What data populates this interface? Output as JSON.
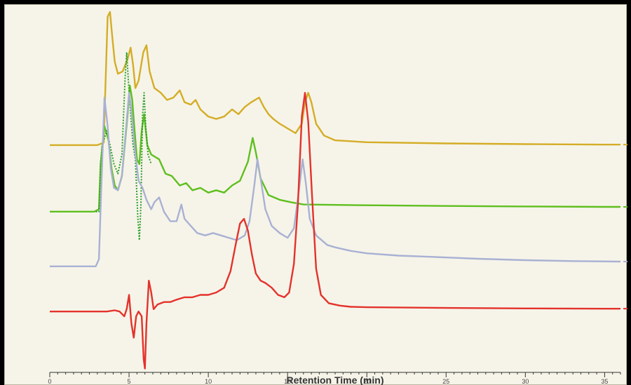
{
  "chart_data": {
    "type": "line",
    "title": "",
    "xlabel": "Retention Time (min)",
    "ylabel": "",
    "xlim": [
      0,
      36
    ],
    "ylim": [
      -0.5,
      14.6
    ],
    "grid": false,
    "legend": "none",
    "x_ticks": [
      0,
      5,
      10,
      15,
      20,
      25,
      30,
      35
    ],
    "x_tick_labels": [
      "0",
      "5",
      "10",
      "15",
      "20",
      "25",
      "30",
      "35"
    ],
    "colors": {
      "background": "#f6f4e9",
      "axis": "#333333"
    },
    "series": [
      {
        "color": "#d4ad26",
        "baseline": 9.0,
        "dash": "",
        "points": [
          [
            0,
            9.0
          ],
          [
            3.0,
            9.0
          ],
          [
            3.4,
            9.1
          ],
          [
            3.5,
            11.2
          ],
          [
            3.65,
            14.4
          ],
          [
            3.8,
            14.6
          ],
          [
            3.95,
            13.5
          ],
          [
            4.1,
            12.5
          ],
          [
            4.3,
            12.0
          ],
          [
            4.6,
            12.1
          ],
          [
            4.9,
            12.6
          ],
          [
            5.1,
            13.1
          ],
          [
            5.25,
            12.4
          ],
          [
            5.4,
            11.4
          ],
          [
            5.6,
            11.7
          ],
          [
            5.9,
            12.9
          ],
          [
            6.1,
            13.2
          ],
          [
            6.3,
            12.1
          ],
          [
            6.6,
            11.4
          ],
          [
            7.0,
            11.2
          ],
          [
            7.4,
            10.9
          ],
          [
            7.8,
            11.0
          ],
          [
            8.2,
            11.3
          ],
          [
            8.5,
            10.8
          ],
          [
            8.9,
            10.7
          ],
          [
            9.2,
            10.9
          ],
          [
            9.5,
            10.5
          ],
          [
            10.0,
            10.2
          ],
          [
            10.5,
            10.1
          ],
          [
            11.0,
            10.2
          ],
          [
            11.5,
            10.5
          ],
          [
            11.9,
            10.3
          ],
          [
            12.3,
            10.6
          ],
          [
            12.7,
            10.8
          ],
          [
            13.2,
            11.0
          ],
          [
            13.5,
            10.6
          ],
          [
            13.8,
            10.3
          ],
          [
            14.1,
            10.1
          ],
          [
            14.5,
            9.9
          ],
          [
            15.0,
            9.7
          ],
          [
            15.5,
            9.5
          ],
          [
            15.9,
            9.9
          ],
          [
            16.1,
            10.8
          ],
          [
            16.3,
            11.2
          ],
          [
            16.5,
            10.8
          ],
          [
            16.8,
            9.9
          ],
          [
            17.3,
            9.4
          ],
          [
            18,
            9.2
          ],
          [
            20,
            9.12
          ],
          [
            25,
            9.07
          ],
          [
            30,
            9.04
          ],
          [
            35,
            9.02
          ],
          [
            36,
            9.02
          ]
        ]
      },
      {
        "color": "#5fbf1e",
        "baseline": 6.2,
        "dash": "",
        "points": [
          [
            0,
            6.2
          ],
          [
            2.8,
            6.2
          ],
          [
            3.1,
            6.3
          ],
          [
            3.2,
            8.2
          ],
          [
            3.45,
            9.8
          ],
          [
            3.7,
            9.2
          ],
          [
            3.9,
            8.0
          ],
          [
            4.1,
            7.3
          ],
          [
            4.3,
            7.1
          ],
          [
            4.55,
            7.7
          ],
          [
            4.9,
            10.2
          ],
          [
            5.05,
            11.5
          ],
          [
            5.2,
            10.9
          ],
          [
            5.35,
            9.6
          ],
          [
            5.5,
            8.4
          ],
          [
            5.65,
            8.2
          ],
          [
            5.8,
            9.6
          ],
          [
            5.95,
            10.3
          ],
          [
            6.15,
            9.0
          ],
          [
            6.4,
            8.6
          ],
          [
            6.9,
            8.4
          ],
          [
            7.3,
            7.8
          ],
          [
            7.7,
            7.7
          ],
          [
            8.2,
            7.3
          ],
          [
            8.6,
            7.4
          ],
          [
            9.0,
            7.1
          ],
          [
            9.5,
            7.2
          ],
          [
            10.0,
            7.0
          ],
          [
            10.5,
            7.1
          ],
          [
            11.0,
            7.0
          ],
          [
            11.5,
            7.3
          ],
          [
            12.0,
            7.5
          ],
          [
            12.5,
            8.3
          ],
          [
            12.8,
            9.3
          ],
          [
            13.0,
            8.7
          ],
          [
            13.3,
            7.6
          ],
          [
            13.8,
            6.9
          ],
          [
            14.5,
            6.7
          ],
          [
            15.2,
            6.6
          ],
          [
            16,
            6.5
          ],
          [
            20,
            6.47
          ],
          [
            25,
            6.44
          ],
          [
            30,
            6.42
          ],
          [
            35,
            6.4
          ],
          [
            36,
            6.4
          ]
        ]
      },
      {
        "color": "#2a9e2a",
        "baseline": 6.2,
        "dash": "2,2",
        "points": [
          [
            2.9,
            6.2
          ],
          [
            3.1,
            6.2
          ],
          [
            3.3,
            9.0
          ],
          [
            3.6,
            9.6
          ],
          [
            3.8,
            9.0
          ],
          [
            4.05,
            8.2
          ],
          [
            4.3,
            7.8
          ],
          [
            4.55,
            8.6
          ],
          [
            4.75,
            11.8
          ],
          [
            4.85,
            12.9
          ],
          [
            4.95,
            11.8
          ],
          [
            5.1,
            10.3
          ],
          [
            5.25,
            9.0
          ],
          [
            5.4,
            8.4
          ],
          [
            5.55,
            6.0
          ],
          [
            5.65,
            5.0
          ],
          [
            5.75,
            6.5
          ],
          [
            5.85,
            10.2
          ],
          [
            5.95,
            11.2
          ],
          [
            6.05,
            9.8
          ],
          [
            6.2,
            8.6
          ],
          [
            6.4,
            8.2
          ]
        ]
      },
      {
        "color": "#a9b1d3",
        "baseline": 3.9,
        "dash": "",
        "points": [
          [
            0,
            3.9
          ],
          [
            2.9,
            3.9
          ],
          [
            3.1,
            4.2
          ],
          [
            3.25,
            7.2
          ],
          [
            3.45,
            11.0
          ],
          [
            3.65,
            9.8
          ],
          [
            3.85,
            8.0
          ],
          [
            4.05,
            7.2
          ],
          [
            4.3,
            7.1
          ],
          [
            4.55,
            7.7
          ],
          [
            4.8,
            9.6
          ],
          [
            5.0,
            11.2
          ],
          [
            5.15,
            10.5
          ],
          [
            5.35,
            8.9
          ],
          [
            5.6,
            7.5
          ],
          [
            5.85,
            7.2
          ],
          [
            6.1,
            6.7
          ],
          [
            6.4,
            6.3
          ],
          [
            6.6,
            6.6
          ],
          [
            6.9,
            6.8
          ],
          [
            7.2,
            6.2
          ],
          [
            7.6,
            5.8
          ],
          [
            8.0,
            5.8
          ],
          [
            8.3,
            6.5
          ],
          [
            8.5,
            5.9
          ],
          [
            8.9,
            5.6
          ],
          [
            9.3,
            5.3
          ],
          [
            9.8,
            5.2
          ],
          [
            10.3,
            5.3
          ],
          [
            10.8,
            5.2
          ],
          [
            11.3,
            5.1
          ],
          [
            11.8,
            5.0
          ],
          [
            12.3,
            5.2
          ],
          [
            12.6,
            5.8
          ],
          [
            12.9,
            7.3
          ],
          [
            13.1,
            8.4
          ],
          [
            13.3,
            7.6
          ],
          [
            13.6,
            6.3
          ],
          [
            14.0,
            5.6
          ],
          [
            14.5,
            5.3
          ],
          [
            15.0,
            5.1
          ],
          [
            15.4,
            5.5
          ],
          [
            15.7,
            7.0
          ],
          [
            15.95,
            8.4
          ],
          [
            16.15,
            7.4
          ],
          [
            16.4,
            5.9
          ],
          [
            16.8,
            5.2
          ],
          [
            17.5,
            4.8
          ],
          [
            18,
            4.7
          ],
          [
            19,
            4.55
          ],
          [
            20,
            4.45
          ],
          [
            22,
            4.35
          ],
          [
            24,
            4.3
          ],
          [
            27,
            4.22
          ],
          [
            30,
            4.16
          ],
          [
            33,
            4.12
          ],
          [
            36,
            4.1
          ]
        ]
      },
      {
        "color": "#e4322b",
        "baseline": 2.0,
        "dash": "",
        "points": [
          [
            0,
            2.0
          ],
          [
            3.0,
            2.0
          ],
          [
            3.6,
            2.0
          ],
          [
            4.1,
            2.05
          ],
          [
            4.4,
            2.0
          ],
          [
            4.7,
            1.8
          ],
          [
            4.85,
            2.1
          ],
          [
            5.0,
            2.7
          ],
          [
            5.15,
            1.5
          ],
          [
            5.3,
            0.9
          ],
          [
            5.45,
            1.8
          ],
          [
            5.6,
            2.0
          ],
          [
            5.8,
            1.8
          ],
          [
            5.92,
            0.0
          ],
          [
            6.0,
            -0.4
          ],
          [
            6.1,
            1.5
          ],
          [
            6.25,
            3.3
          ],
          [
            6.4,
            2.8
          ],
          [
            6.55,
            2.1
          ],
          [
            6.8,
            2.3
          ],
          [
            7.2,
            2.4
          ],
          [
            7.6,
            2.4
          ],
          [
            8.0,
            2.5
          ],
          [
            8.5,
            2.6
          ],
          [
            9.0,
            2.6
          ],
          [
            9.5,
            2.7
          ],
          [
            10.0,
            2.7
          ],
          [
            10.5,
            2.8
          ],
          [
            11.0,
            3.0
          ],
          [
            11.4,
            3.7
          ],
          [
            11.75,
            4.9
          ],
          [
            12.0,
            5.7
          ],
          [
            12.25,
            5.9
          ],
          [
            12.5,
            5.4
          ],
          [
            12.75,
            4.4
          ],
          [
            13.0,
            3.6
          ],
          [
            13.3,
            3.3
          ],
          [
            13.6,
            3.2
          ],
          [
            14.0,
            3.0
          ],
          [
            14.4,
            2.7
          ],
          [
            14.8,
            2.6
          ],
          [
            15.1,
            2.8
          ],
          [
            15.4,
            4.0
          ],
          [
            15.65,
            6.5
          ],
          [
            15.9,
            10.2
          ],
          [
            16.1,
            11.2
          ],
          [
            16.3,
            10.0
          ],
          [
            16.55,
            6.8
          ],
          [
            16.8,
            3.8
          ],
          [
            17.1,
            2.7
          ],
          [
            17.6,
            2.35
          ],
          [
            18.3,
            2.25
          ],
          [
            19,
            2.2
          ],
          [
            20,
            2.18
          ],
          [
            25,
            2.15
          ],
          [
            30,
            2.13
          ],
          [
            35,
            2.12
          ],
          [
            36,
            2.12
          ]
        ]
      }
    ]
  }
}
